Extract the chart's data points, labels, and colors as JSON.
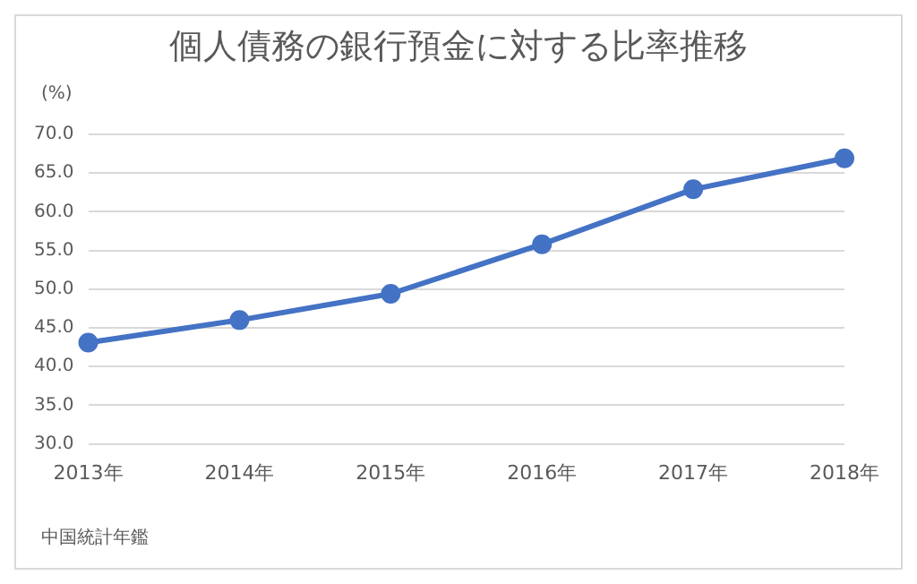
{
  "chart_data": {
    "type": "line",
    "title": "個人債務の銀行預金に対する比率推移",
    "ylabel": "(%)",
    "categories": [
      "2013年",
      "2014年",
      "2015年",
      "2016年",
      "2017年",
      "2018年"
    ],
    "series": [
      {
        "color": "#4472c4",
        "values": [
          43.1,
          46.0,
          49.4,
          55.8,
          62.9,
          66.9
        ]
      }
    ],
    "ylim": [
      30,
      70
    ],
    "yticks": [
      {
        "value": 30,
        "label": "30.0"
      },
      {
        "value": 35,
        "label": "35.0"
      },
      {
        "value": 40,
        "label": "40.0"
      },
      {
        "value": 45,
        "label": "45.0"
      },
      {
        "value": 50,
        "label": "50.0"
      },
      {
        "value": 55,
        "label": "55.0"
      },
      {
        "value": 60,
        "label": "60.0"
      },
      {
        "value": 65,
        "label": "65.0"
      },
      {
        "value": 70,
        "label": "70.0"
      }
    ],
    "grid": "y",
    "legend": false,
    "marker": "circle",
    "line_style": "solid",
    "annotations": [
      "中国統計年鑑"
    ]
  }
}
